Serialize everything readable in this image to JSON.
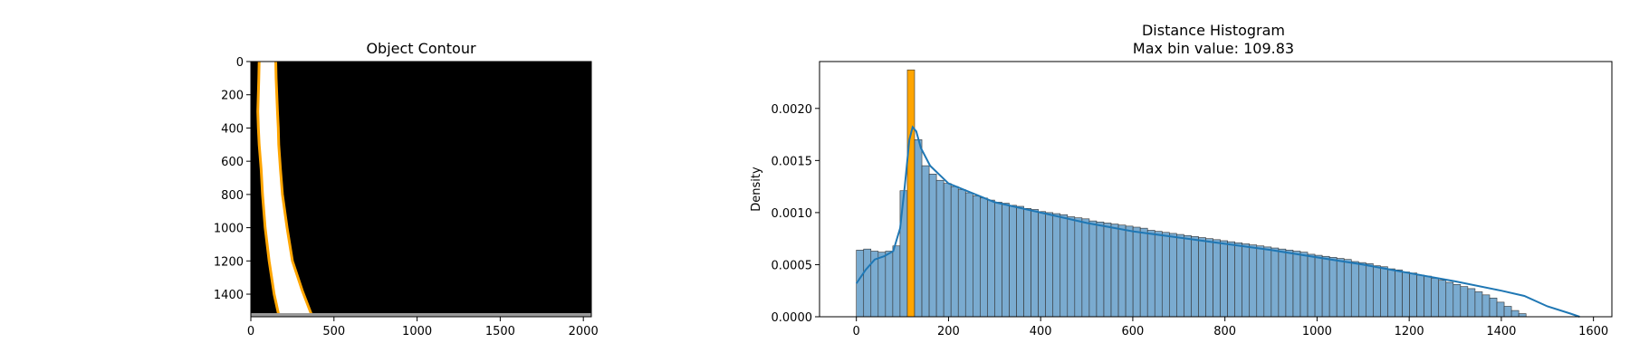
{
  "chart_data": [
    {
      "type": "image",
      "title": "Object Contour",
      "xlim": [
        0,
        2048
      ],
      "ylim": [
        1536,
        0
      ],
      "xticks": [
        0,
        500,
        1000,
        1500,
        2000
      ],
      "yticks": [
        0,
        200,
        400,
        600,
        800,
        1000,
        1200,
        1400
      ],
      "background_color": "#000000",
      "object_color": "#ffffff",
      "contour_color": "#ffa500",
      "contour_left": [
        [
          50,
          0
        ],
        [
          48,
          100
        ],
        [
          42,
          300
        ],
        [
          45,
          400
        ],
        [
          50,
          500
        ],
        [
          62,
          650
        ],
        [
          70,
          800
        ],
        [
          86,
          1000
        ],
        [
          110,
          1200
        ],
        [
          140,
          1400
        ],
        [
          170,
          1536
        ]
      ],
      "contour_right": [
        [
          150,
          0
        ],
        [
          152,
          100
        ],
        [
          160,
          300
        ],
        [
          165,
          400
        ],
        [
          168,
          500
        ],
        [
          178,
          650
        ],
        [
          190,
          800
        ],
        [
          218,
          1000
        ],
        [
          250,
          1200
        ],
        [
          310,
          1380
        ],
        [
          370,
          1536
        ]
      ]
    },
    {
      "type": "bar",
      "title": "Distance Histogram",
      "subtitle": "Max bin value: 109.83",
      "xlabel": "",
      "ylabel": "Density",
      "xlim": [
        -80,
        1640
      ],
      "ylim": [
        0,
        0.00245
      ],
      "xticks": [
        0,
        200,
        400,
        600,
        800,
        1000,
        1200,
        1400,
        1600
      ],
      "yticks": [
        "0.0000",
        "0.0005",
        "0.0010",
        "0.0015",
        "0.0020"
      ],
      "ytick_values": [
        0,
        0.0005,
        0.001,
        0.0015,
        0.002
      ],
      "bin_width": 15.8,
      "bin_start": 0,
      "highlight_bin_index": 7,
      "bar_color": "#7aabd0",
      "highlight_color": "#ffa500",
      "kde_color": "#1f77b4",
      "values": [
        0.00064,
        0.00065,
        0.00063,
        0.00062,
        0.00063,
        0.00068,
        0.00121,
        0.00237,
        0.0017,
        0.00145,
        0.00137,
        0.00131,
        0.00128,
        0.00125,
        0.00122,
        0.00119,
        0.00116,
        0.00114,
        0.00112,
        0.0011,
        0.00109,
        0.00107,
        0.00106,
        0.00104,
        0.00103,
        0.00101,
        0.001,
        0.00099,
        0.00098,
        0.00096,
        0.00095,
        0.00094,
        0.00092,
        0.00091,
        0.0009,
        0.00089,
        0.00088,
        0.00087,
        0.00086,
        0.00085,
        0.00083,
        0.00082,
        0.00081,
        0.0008,
        0.00079,
        0.00078,
        0.00077,
        0.00076,
        0.00075,
        0.00074,
        0.00073,
        0.00072,
        0.00071,
        0.0007,
        0.00069,
        0.00068,
        0.00067,
        0.00066,
        0.00065,
        0.00064,
        0.00063,
        0.00062,
        0.0006,
        0.00059,
        0.00058,
        0.00057,
        0.00056,
        0.00055,
        0.00053,
        0.00052,
        0.00051,
        0.00049,
        0.00048,
        0.00046,
        0.00045,
        0.00043,
        0.00042,
        0.0004,
        0.00039,
        0.00037,
        0.00035,
        0.00033,
        0.00031,
        0.00029,
        0.00027,
        0.00024,
        0.00021,
        0.00018,
        0.00014,
        0.0001,
        6e-05,
        3e-05
      ],
      "kde": [
        [
          0,
          0.00032
        ],
        [
          20,
          0.00045
        ],
        [
          40,
          0.00055
        ],
        [
          60,
          0.00058
        ],
        [
          80,
          0.00063
        ],
        [
          95,
          0.00085
        ],
        [
          105,
          0.00125
        ],
        [
          115,
          0.0017
        ],
        [
          122,
          0.00182
        ],
        [
          130,
          0.00178
        ],
        [
          140,
          0.00162
        ],
        [
          160,
          0.00145
        ],
        [
          200,
          0.00128
        ],
        [
          300,
          0.0011
        ],
        [
          400,
          0.001
        ],
        [
          500,
          0.0009
        ],
        [
          600,
          0.00082
        ],
        [
          700,
          0.00076
        ],
        [
          800,
          0.0007
        ],
        [
          900,
          0.00064
        ],
        [
          1000,
          0.00057
        ],
        [
          1100,
          0.0005
        ],
        [
          1200,
          0.00042
        ],
        [
          1300,
          0.00034
        ],
        [
          1400,
          0.00025
        ],
        [
          1450,
          0.0002
        ],
        [
          1500,
          0.0001
        ],
        [
          1550,
          3e-05
        ],
        [
          1570,
          0.0
        ]
      ]
    }
  ]
}
